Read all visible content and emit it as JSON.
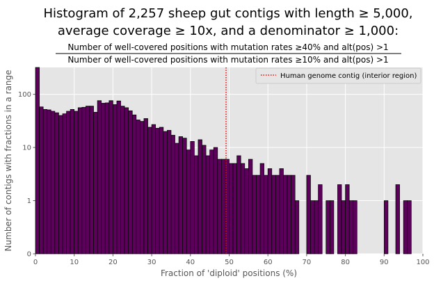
{
  "chart_data": {
    "type": "bar",
    "title_lines": [
      "Histogram of 2,257 sheep gut contigs with length ≥ 5,000,",
      "average coverage ≥ 10x, and a denominator ≥ 1,000:"
    ],
    "fraction_numerator": "Number of well-covered positions with mutation rates ≥40% and alt(pos) >1",
    "fraction_denominator": "Number of well-covered positions with mutation rates ≥10% and alt(pos) >1",
    "xlabel": "Fraction of 'diploid' positions (%)",
    "ylabel": "Number of contigs with fractions in a range",
    "xlim": [
      0,
      100
    ],
    "xticks": [
      "0",
      "10",
      "20",
      "30",
      "40",
      "50",
      "60",
      "70",
      "80",
      "90",
      "100"
    ],
    "yscale": "symlog",
    "yticks": [
      "0",
      "1",
      "10",
      "100"
    ],
    "ylim_top": 320,
    "bin_width": 1,
    "bin_start": 0,
    "bar_color": "#5c005c",
    "bar_edge_color": "#000000",
    "background_color": "#e5e5e5",
    "grid": true,
    "values": [
      320,
      58,
      52,
      51,
      48,
      45,
      40,
      43,
      48,
      52,
      48,
      56,
      57,
      60,
      60,
      46,
      76,
      68,
      69,
      76,
      64,
      75,
      60,
      56,
      49,
      41,
      33,
      31,
      35,
      24,
      27,
      23,
      24,
      20,
      21,
      17,
      12,
      16,
      15,
      9,
      13,
      7,
      14,
      11,
      7,
      9,
      10,
      6,
      6,
      6,
      5,
      5,
      7,
      5,
      4,
      6,
      3,
      3,
      5,
      3,
      4,
      3,
      3,
      4,
      3,
      3,
      3,
      1,
      0,
      0,
      3,
      1,
      1,
      2,
      0,
      1,
      1,
      0,
      2,
      1,
      2,
      1,
      1,
      0,
      0,
      0,
      0,
      0,
      0,
      0,
      1,
      0,
      0,
      2,
      0,
      1,
      1,
      0,
      0,
      0
    ],
    "vline": {
      "x": 49.2,
      "color": "#ff0000",
      "style": "dotted",
      "label": "Human genome contig (interior region)"
    },
    "legend_position": "top-right"
  }
}
